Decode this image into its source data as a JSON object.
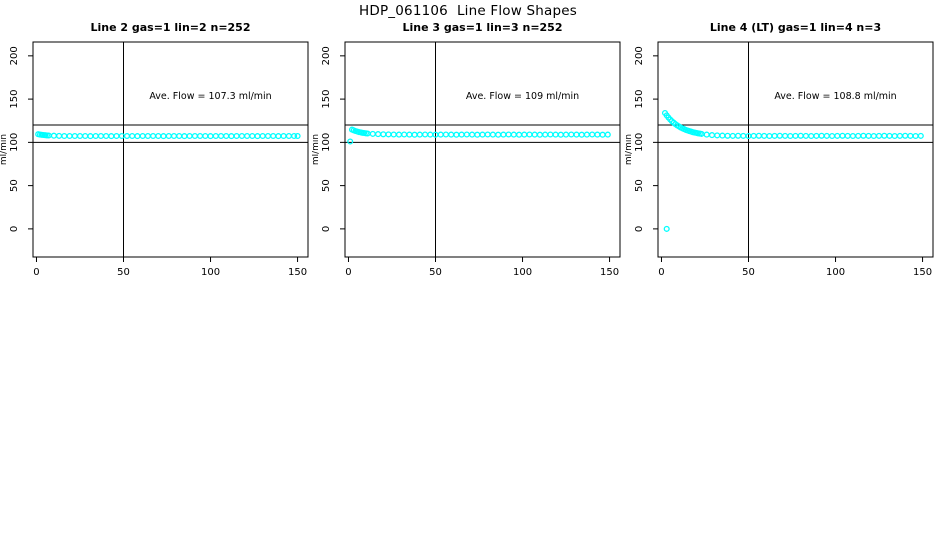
{
  "page": {
    "title": "HDP_061106  Line Flow Shapes"
  },
  "colors": {
    "background": "#FFFFFF",
    "points": "#00FFFF",
    "axis": "#000000",
    "text": "#000000"
  },
  "marker": {
    "shape": "open-circle",
    "radius": 2.4,
    "stroke_width": 1.3
  },
  "chart_data": [
    {
      "type": "scatter",
      "title": "Line 2 gas=1 lin=2 n=252",
      "annotation": "Ave. Flow =  107.3  ml/min",
      "ave_flow_ml_min": 107.3,
      "n": 252,
      "ylabel": "ml/min",
      "xticks": [
        0,
        50,
        100,
        150
      ],
      "yticks": [
        0,
        50,
        100,
        150,
        200
      ],
      "xlim": [
        -2,
        156
      ],
      "ylim": [
        -32.5,
        216
      ],
      "vline_x": 50,
      "hlines": [
        120,
        100
      ],
      "annotation_xy": [
        100,
        150
      ],
      "grid": false,
      "extra_points": [],
      "points": [
        [
          1,
          109.4
        ],
        [
          2,
          109.0
        ],
        [
          3,
          108.7
        ],
        [
          4,
          108.5
        ],
        [
          5,
          108.3
        ],
        [
          6,
          108.1
        ],
        [
          7,
          107.9
        ],
        [
          10,
          107.7
        ],
        [
          13,
          107.5
        ],
        [
          16,
          107.4
        ],
        [
          19,
          107.4
        ],
        [
          22,
          107.3
        ],
        [
          25,
          107.4
        ],
        [
          28,
          107.3
        ],
        [
          31,
          107.2
        ],
        [
          34,
          107.3
        ],
        [
          37,
          107.4
        ],
        [
          40,
          107.3
        ],
        [
          43,
          107.2
        ],
        [
          46,
          107.3
        ],
        [
          49,
          107.3
        ],
        [
          52,
          107.4
        ],
        [
          55,
          107.3
        ],
        [
          58,
          107.2
        ],
        [
          61,
          107.3
        ],
        [
          64,
          107.3
        ],
        [
          67,
          107.4
        ],
        [
          70,
          107.3
        ],
        [
          73,
          107.2
        ],
        [
          76,
          107.3
        ],
        [
          79,
          107.4
        ],
        [
          82,
          107.3
        ],
        [
          85,
          107.2
        ],
        [
          88,
          107.3
        ],
        [
          91,
          107.3
        ],
        [
          94,
          107.4
        ],
        [
          97,
          107.3
        ],
        [
          100,
          107.2
        ],
        [
          103,
          107.3
        ],
        [
          106,
          107.4
        ],
        [
          109,
          107.3
        ],
        [
          112,
          107.2
        ],
        [
          115,
          107.3
        ],
        [
          118,
          107.3
        ],
        [
          121,
          107.4
        ],
        [
          124,
          107.3
        ],
        [
          127,
          107.2
        ],
        [
          130,
          107.3
        ],
        [
          133,
          107.4
        ],
        [
          136,
          107.3
        ],
        [
          139,
          107.2
        ],
        [
          142,
          107.3
        ],
        [
          145,
          107.3
        ],
        [
          148,
          107.4
        ],
        [
          150,
          107.3
        ]
      ]
    },
    {
      "type": "scatter",
      "title": "Line 3 gas=1 lin=3 n=252",
      "annotation": "Ave. Flow =  109  ml/min",
      "ave_flow_ml_min": 109,
      "n": 252,
      "ylabel": "ml/min",
      "xticks": [
        0,
        50,
        100,
        150
      ],
      "yticks": [
        0,
        50,
        100,
        150,
        200
      ],
      "xlim": [
        -2,
        156
      ],
      "ylim": [
        -32.5,
        216
      ],
      "vline_x": 50,
      "hlines": [
        120,
        100
      ],
      "annotation_xy": [
        100,
        150
      ],
      "grid": false,
      "extra_points": [
        [
          1,
          101
        ]
      ],
      "points": [
        [
          2,
          114.7
        ],
        [
          3,
          113.9
        ],
        [
          4,
          113.1
        ],
        [
          5,
          112.5
        ],
        [
          6,
          111.9
        ],
        [
          7,
          111.5
        ],
        [
          8,
          111.1
        ],
        [
          9,
          110.8
        ],
        [
          10,
          110.5
        ],
        [
          11,
          110.3
        ],
        [
          14,
          109.8
        ],
        [
          17,
          109.5
        ],
        [
          20,
          109.3
        ],
        [
          23,
          109.2
        ],
        [
          26,
          109.1
        ],
        [
          29,
          109.0
        ],
        [
          32,
          109.1
        ],
        [
          35,
          109.0
        ],
        [
          38,
          108.9
        ],
        [
          41,
          109.0
        ],
        [
          44,
          109.1
        ],
        [
          47,
          109.0
        ],
        [
          50,
          108.9
        ],
        [
          53,
          109.0
        ],
        [
          56,
          109.1
        ],
        [
          59,
          109.0
        ],
        [
          62,
          108.9
        ],
        [
          65,
          109.0
        ],
        [
          68,
          109.1
        ],
        [
          71,
          109.0
        ],
        [
          74,
          108.9
        ],
        [
          77,
          109.0
        ],
        [
          80,
          109.1
        ],
        [
          83,
          109.0
        ],
        [
          86,
          108.9
        ],
        [
          89,
          109.0
        ],
        [
          92,
          109.1
        ],
        [
          95,
          109.0
        ],
        [
          98,
          108.9
        ],
        [
          101,
          109.0
        ],
        [
          104,
          109.1
        ],
        [
          107,
          109.0
        ],
        [
          110,
          108.9
        ],
        [
          113,
          109.0
        ],
        [
          116,
          109.1
        ],
        [
          119,
          109.0
        ],
        [
          122,
          108.9
        ],
        [
          125,
          109.0
        ],
        [
          128,
          109.1
        ],
        [
          131,
          109.0
        ],
        [
          134,
          108.9
        ],
        [
          137,
          109.0
        ],
        [
          140,
          109.1
        ],
        [
          143,
          109.0
        ],
        [
          146,
          108.9
        ],
        [
          149,
          109.0
        ]
      ]
    },
    {
      "type": "scatter",
      "title": "Line 4 (LT) gas=1 lin=4 n=3",
      "annotation": "Ave. Flow =  108.8  ml/min",
      "ave_flow_ml_min": 108.8,
      "n": 3,
      "ylabel": "ml/min",
      "xticks": [
        0,
        50,
        100,
        150
      ],
      "yticks": [
        0,
        50,
        100,
        150,
        200
      ],
      "xlim": [
        -2,
        156
      ],
      "ylim": [
        -32.5,
        216
      ],
      "vline_x": 50,
      "hlines": [
        120,
        100
      ],
      "annotation_xy": [
        100,
        150
      ],
      "grid": false,
      "extra_points": [
        [
          3,
          0
        ]
      ],
      "points": [
        [
          2,
          133.9
        ],
        [
          3,
          131.2
        ],
        [
          4,
          128.7
        ],
        [
          5,
          126.4
        ],
        [
          6,
          124.5
        ],
        [
          7,
          122.7
        ],
        [
          8,
          121.1
        ],
        [
          9,
          119.7
        ],
        [
          10,
          118.4
        ],
        [
          11,
          117.2
        ],
        [
          12,
          116.2
        ],
        [
          13,
          115.3
        ],
        [
          14,
          114.4
        ],
        [
          15,
          113.7
        ],
        [
          16,
          113.0
        ],
        [
          17,
          112.4
        ],
        [
          18,
          111.8
        ],
        [
          19,
          111.3
        ],
        [
          20,
          110.9
        ],
        [
          21,
          110.5
        ],
        [
          22,
          110.1
        ],
        [
          23,
          109.8
        ],
        [
          26,
          109.0
        ],
        [
          29,
          108.4
        ],
        [
          32,
          108.0
        ],
        [
          35,
          107.8
        ],
        [
          38,
          107.6
        ],
        [
          41,
          107.5
        ],
        [
          44,
          107.6
        ],
        [
          47,
          107.5
        ],
        [
          50,
          107.4
        ],
        [
          53,
          107.5
        ],
        [
          56,
          107.6
        ],
        [
          59,
          107.5
        ],
        [
          62,
          107.4
        ],
        [
          65,
          107.5
        ],
        [
          68,
          107.6
        ],
        [
          71,
          107.5
        ],
        [
          74,
          107.4
        ],
        [
          77,
          107.5
        ],
        [
          80,
          107.6
        ],
        [
          83,
          107.5
        ],
        [
          86,
          107.4
        ],
        [
          89,
          107.5
        ],
        [
          92,
          107.6
        ],
        [
          95,
          107.5
        ],
        [
          98,
          107.4
        ],
        [
          101,
          107.5
        ],
        [
          104,
          107.6
        ],
        [
          107,
          107.5
        ],
        [
          110,
          107.4
        ],
        [
          113,
          107.5
        ],
        [
          116,
          107.6
        ],
        [
          119,
          107.5
        ],
        [
          122,
          107.4
        ],
        [
          125,
          107.5
        ],
        [
          128,
          107.6
        ],
        [
          131,
          107.5
        ],
        [
          134,
          107.4
        ],
        [
          137,
          107.5
        ],
        [
          140,
          107.6
        ],
        [
          143,
          107.5
        ],
        [
          146,
          107.4
        ],
        [
          149,
          107.5
        ]
      ]
    }
  ]
}
